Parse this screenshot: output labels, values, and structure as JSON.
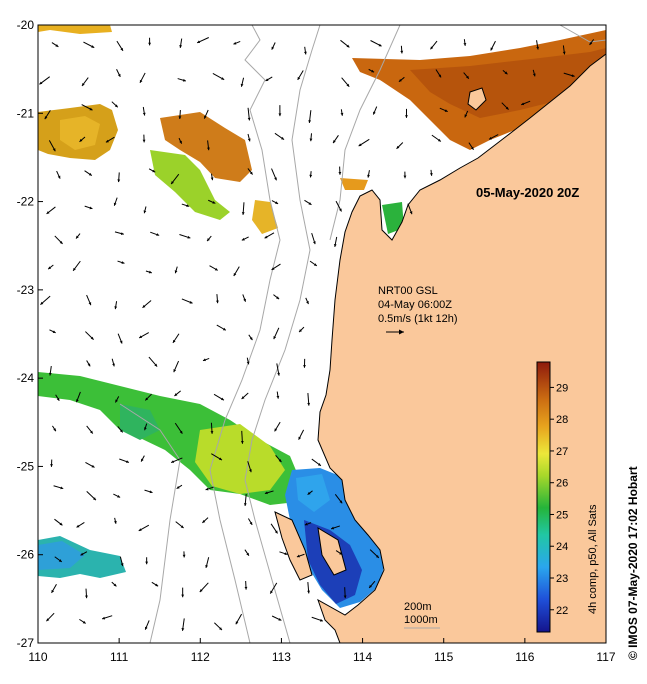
{
  "map": {
    "date_stamp": "05-May-2020 20Z",
    "current_info": {
      "line1": "NRT00 GSL",
      "line2": "04-May 06:00Z",
      "line3": "0.5m/s (1kt 12h)"
    },
    "depth_legend": {
      "shallow": "200m",
      "deep": "1000m"
    },
    "colorbar": {
      "title": "4h comp, p50, All Sats",
      "ticks": [
        "22",
        "23",
        "24",
        "25",
        "26",
        "27",
        "28",
        "29"
      ],
      "min": 21.3,
      "max": 29.8
    },
    "credit": "© IMOS 07-May-2020 17:02 Hobart",
    "x_axis": {
      "ticks": [
        "110",
        "111",
        "112",
        "113",
        "114",
        "115",
        "116",
        "117"
      ],
      "range": [
        110,
        117
      ]
    },
    "y_axis": {
      "ticks": [
        "-20",
        "-21",
        "-22",
        "-23",
        "-24",
        "-25",
        "-26",
        "-27"
      ],
      "range": [
        -27,
        -20
      ]
    },
    "colors": {
      "land": "#fac89b",
      "ocean": "#ffffff",
      "bathymetry": "#a8a8a8",
      "arrow": "#000000"
    }
  }
}
